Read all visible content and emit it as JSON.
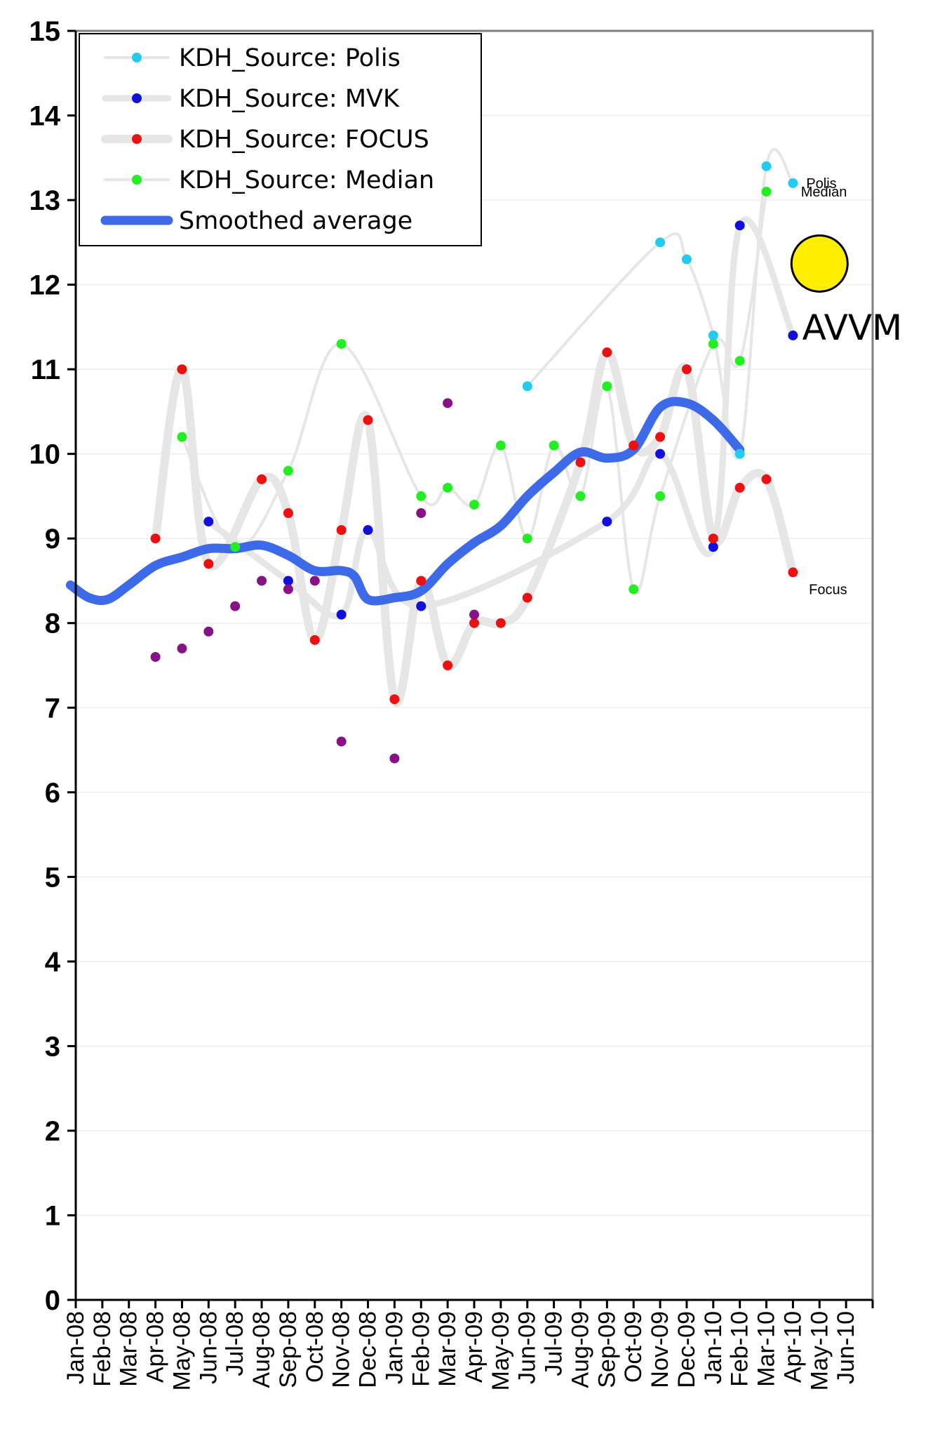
{
  "chart_data": {
    "type": "line",
    "title": "",
    "xlabel": "",
    "ylabel": "",
    "ylim": [
      0,
      15
    ],
    "yticks": [
      "0",
      "1",
      "2",
      "3",
      "4",
      "5",
      "6",
      "7",
      "8",
      "9",
      "10",
      "11",
      "12",
      "13",
      "14",
      "15"
    ],
    "categories": [
      "Jan-08",
      "Feb-08",
      "Mar-08",
      "Apr-08",
      "May-08",
      "Jun-08",
      "Jul-08",
      "Aug-08",
      "Sep-08",
      "Oct-08",
      "Nov-08",
      "Dec-08",
      "Jan-09",
      "Feb-09",
      "Mar-09",
      "Apr-09",
      "May-09",
      "Jun-09",
      "Jul-09",
      "Aug-09",
      "Sep-09",
      "Oct-09",
      "Nov-09",
      "Dec-09",
      "Jan-10",
      "Feb-10",
      "Mar-10",
      "Apr-10",
      "May-10",
      "Jun-10"
    ],
    "grid": "horizontal",
    "legend_position": "top-left",
    "series": [
      {
        "name": "KDH_Source: Polis",
        "marker_color": "#22ccee",
        "line_color": "#e6e6e6",
        "line_width": 4,
        "points": [
          [
            17,
            10.8
          ],
          [
            22,
            12.5
          ],
          [
            23,
            12.3
          ],
          [
            24,
            11.4
          ],
          [
            25,
            10.0
          ],
          [
            26,
            13.4
          ],
          [
            27,
            13.2
          ]
        ]
      },
      {
        "name": "KDH_Source: MVK",
        "marker_color": "#1010dd",
        "line_color": "#e6e6e6",
        "line_width": 9,
        "points": [
          [
            5,
            9.2
          ],
          [
            8,
            8.5
          ],
          [
            10,
            8.1
          ],
          [
            11,
            9.1
          ],
          [
            13,
            8.2
          ],
          [
            20,
            9.2
          ],
          [
            22,
            10.0
          ],
          [
            24,
            8.9
          ],
          [
            25,
            12.7
          ],
          [
            27,
            11.4
          ]
        ]
      },
      {
        "name": "KDH_Source: FOCUS",
        "marker_color": "#ee1010",
        "line_color": "#e6e6e6",
        "line_width": 12,
        "points": [
          [
            3,
            9.0
          ],
          [
            4,
            11.0
          ],
          [
            5,
            8.7
          ],
          [
            7,
            9.7
          ],
          [
            8,
            9.3
          ],
          [
            9,
            7.8
          ],
          [
            10,
            9.1
          ],
          [
            11,
            10.4
          ],
          [
            12,
            7.1
          ],
          [
            13,
            8.5
          ],
          [
            14,
            7.5
          ],
          [
            15,
            8.0
          ],
          [
            16,
            8.0
          ],
          [
            17,
            8.3
          ],
          [
            19,
            9.9
          ],
          [
            20,
            11.2
          ],
          [
            21,
            10.1
          ],
          [
            22,
            10.2
          ],
          [
            23,
            11.0
          ],
          [
            24,
            9.0
          ],
          [
            25,
            9.6
          ],
          [
            26,
            9.7
          ],
          [
            27,
            8.6
          ]
        ]
      },
      {
        "name": "KDH_Source: Median",
        "marker_color": "#22ee22",
        "line_color": "#e6e6e6",
        "line_width": 4,
        "points": [
          [
            4,
            10.2
          ],
          [
            6,
            8.9
          ],
          [
            8,
            9.8
          ],
          [
            10,
            11.3
          ],
          [
            13,
            9.5
          ],
          [
            14,
            9.6
          ],
          [
            15,
            9.4
          ],
          [
            16,
            10.1
          ],
          [
            17,
            9.0
          ],
          [
            18,
            10.1
          ],
          [
            19,
            9.5
          ],
          [
            20,
            10.8
          ],
          [
            21,
            8.4
          ],
          [
            22,
            9.5
          ],
          [
            24,
            11.3
          ],
          [
            25,
            11.1
          ],
          [
            26,
            13.1
          ]
        ]
      },
      {
        "name": "",
        "marker_color": "#881188",
        "line_color": "none",
        "line_width": 0,
        "points": [
          [
            3,
            7.6
          ],
          [
            4,
            7.7
          ],
          [
            5,
            7.9
          ],
          [
            6,
            8.2
          ],
          [
            7,
            8.5
          ],
          [
            8,
            8.4
          ],
          [
            9,
            8.5
          ],
          [
            10,
            6.6
          ],
          [
            12,
            6.4
          ],
          [
            13,
            9.3
          ],
          [
            14,
            10.6
          ],
          [
            15,
            8.1
          ]
        ]
      },
      {
        "name": "Smoothed average",
        "marker_color": "none",
        "line_color": "#3d6ae8",
        "line_width": 13,
        "points": [
          [
            -0.2,
            8.45
          ],
          [
            0.5,
            8.3
          ],
          [
            1.2,
            8.28
          ],
          [
            2,
            8.45
          ],
          [
            3,
            8.68
          ],
          [
            4,
            8.78
          ],
          [
            5,
            8.88
          ],
          [
            6,
            8.88
          ],
          [
            7,
            8.92
          ],
          [
            8,
            8.8
          ],
          [
            9,
            8.62
          ],
          [
            10,
            8.62
          ],
          [
            10.5,
            8.55
          ],
          [
            11,
            8.28
          ],
          [
            12,
            8.3
          ],
          [
            13,
            8.38
          ],
          [
            14,
            8.7
          ],
          [
            15,
            8.95
          ],
          [
            16,
            9.15
          ],
          [
            17,
            9.5
          ],
          [
            18,
            9.78
          ],
          [
            19,
            10.02
          ],
          [
            20,
            9.95
          ],
          [
            21,
            10.05
          ],
          [
            22,
            10.55
          ],
          [
            23,
            10.6
          ],
          [
            24,
            10.4
          ],
          [
            25,
            10.05
          ]
        ]
      }
    ],
    "annotations": [
      {
        "text": "Polis",
        "x": 27.5,
        "y": 13.2,
        "size": "small"
      },
      {
        "text": "Median",
        "x": 27.3,
        "y": 13.1,
        "size": "small"
      },
      {
        "text": "Focus",
        "x": 27.6,
        "y": 8.4,
        "size": "small"
      },
      {
        "text": "AVVM",
        "x": 27.35,
        "y": 11.5,
        "size": "large"
      }
    ],
    "highlight_marker": {
      "x": 28,
      "y": 12.25,
      "color": "#ffee00"
    }
  }
}
